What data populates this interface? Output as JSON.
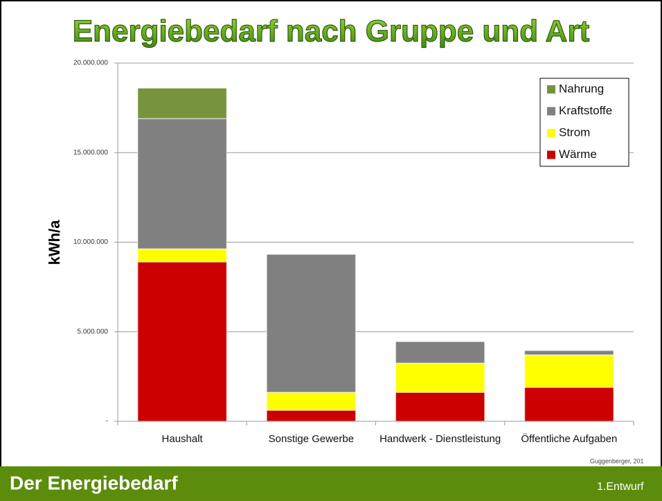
{
  "chart_data": {
    "type": "stacked_bar",
    "title": "Energiebedarf nach Gruppe und Art",
    "y_label": "kWh/a",
    "categories": [
      "Haushalt",
      "Sonstige Gewerbe",
      "Handwerk - Dienstleistung",
      "Öffentliche Aufgaben"
    ],
    "series": [
      {
        "name": "Wärme",
        "color": "#cc0000",
        "values": [
          8900000,
          620000,
          1620000,
          1900000
        ]
      },
      {
        "name": "Strom",
        "color": "#ffff00",
        "values": [
          730000,
          1000000,
          1630000,
          1810000
        ]
      },
      {
        "name": "Kraftstoffe",
        "color": "#808080",
        "values": [
          7270000,
          7700000,
          1200000,
          240000
        ]
      },
      {
        "name": "Nahrung",
        "color": "#77933c",
        "values": [
          1700000,
          0,
          0,
          0
        ]
      }
    ],
    "ylim": [
      0,
      20000000
    ],
    "yticks": [
      {
        "value": 0,
        "label": "-"
      },
      {
        "value": 5000000,
        "label": "5.000.000"
      },
      {
        "value": 10000000,
        "label": "10.000.000"
      },
      {
        "value": 15000000,
        "label": "15.000.000"
      },
      {
        "value": 20000000,
        "label": "20.000.000"
      }
    ],
    "grid": true,
    "legend": "top-right"
  },
  "footer": {
    "title": "Der Energiebedarf",
    "note": "1.Entwurf",
    "credit": "Guggenberger, 201"
  }
}
